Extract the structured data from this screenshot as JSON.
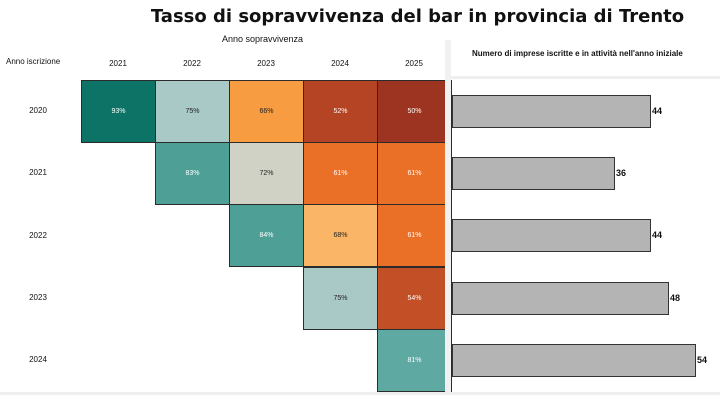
{
  "chart_data": {
    "type": "heatmap",
    "title": "Tasso di sopravvivenza del bar in provincia di Trento",
    "xlabel": "Anno sopravvivenza",
    "ylabel": "Anno iscrizione",
    "x": [
      "2021",
      "2022",
      "2023",
      "2024",
      "2025"
    ],
    "y": [
      "2020",
      "2021",
      "2022",
      "2023",
      "2024"
    ],
    "cells": [
      {
        "row": "2020",
        "col": "2021",
        "label": "93%",
        "color": "#0c7366",
        "text_color": "#ffffff"
      },
      {
        "row": "2020",
        "col": "2022",
        "label": "75%",
        "color": "#a9c9c6",
        "text_color": "#222222"
      },
      {
        "row": "2020",
        "col": "2023",
        "label": "66%",
        "color": "#f79c41",
        "text_color": "#222222"
      },
      {
        "row": "2020",
        "col": "2024",
        "label": "52%",
        "color": "#b44424",
        "text_color": "#ffffff"
      },
      {
        "row": "2020",
        "col": "2025",
        "label": "50%",
        "color": "#9c3421",
        "text_color": "#ffffff"
      },
      {
        "row": "2021",
        "col": "2022",
        "label": "83%",
        "color": "#4e9f96",
        "text_color": "#ffffff"
      },
      {
        "row": "2021",
        "col": "2023",
        "label": "72%",
        "color": "#d1d2c6",
        "text_color": "#222222"
      },
      {
        "row": "2021",
        "col": "2024",
        "label": "61%",
        "color": "#ea6f27",
        "text_color": "#ffffff"
      },
      {
        "row": "2021",
        "col": "2025",
        "label": "61%",
        "color": "#ea6f27",
        "text_color": "#ffffff"
      },
      {
        "row": "2022",
        "col": "2023",
        "label": "84%",
        "color": "#4e9f96",
        "text_color": "#ffffff"
      },
      {
        "row": "2022",
        "col": "2024",
        "label": "68%",
        "color": "#fbb566",
        "text_color": "#222222"
      },
      {
        "row": "2022",
        "col": "2025",
        "label": "61%",
        "color": "#ea6f27",
        "text_color": "#ffffff"
      },
      {
        "row": "2023",
        "col": "2024",
        "label": "75%",
        "color": "#a9c9c6",
        "text_color": "#222222"
      },
      {
        "row": "2023",
        "col": "2025",
        "label": "54%",
        "color": "#c24f25",
        "text_color": "#ffffff"
      },
      {
        "row": "2024",
        "col": "2025",
        "label": "81%",
        "color": "#5eaaa2",
        "text_color": "#ffffff"
      }
    ],
    "bar_chart": {
      "type": "bar",
      "title": "Numero di imprese iscritte e in attività nell'anno iniziale",
      "categories": [
        "2020",
        "2021",
        "2022",
        "2023",
        "2024"
      ],
      "values": [
        44,
        36,
        44,
        48,
        54
      ],
      "xlim": [
        0,
        54
      ],
      "bar_color": "#b4b4b4"
    }
  }
}
